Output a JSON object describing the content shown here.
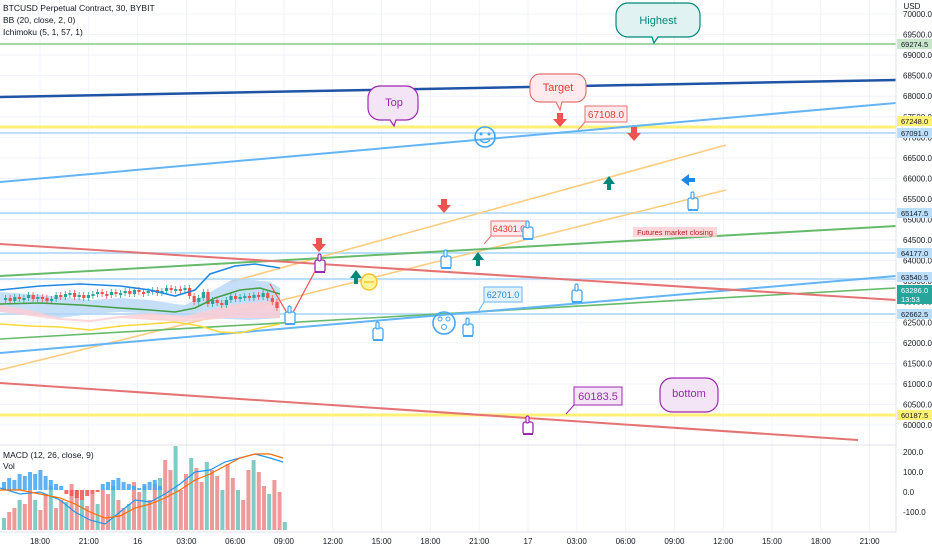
{
  "legends": {
    "symbol": "BTCUSD Perpetual Contract, 30, BYBIT",
    "bb": "BB (20, close, 2, 0)",
    "ichimoku": "Ichimoku (5, 1, 57, 1)",
    "macd": "MACD (12, 26, close, 9)",
    "vol": "Vol"
  },
  "price_axis": {
    "currency": "USD",
    "ticks": [
      "70000.0",
      "69500.0",
      "69000.0",
      "68500.0",
      "68000.0",
      "67500.0",
      "67000.0",
      "66500.0",
      "66000.0",
      "65500.0",
      "65000.0",
      "64500.0",
      "64000.0",
      "63500.0",
      "63000.0",
      "62500.0",
      "62000.0",
      "61500.0",
      "61000.0",
      "60500.0",
      "60000.0"
    ]
  },
  "macd_axis": {
    "ticks": [
      "200.0",
      "100.0",
      "0.0",
      "-100.0"
    ]
  },
  "time_axis": {
    "ticks": [
      "18:00",
      "21:00",
      "16",
      "03:00",
      "06:00",
      "09:00",
      "12:00",
      "15:00",
      "18:00",
      "21:00",
      "17",
      "03:00",
      "06:00",
      "09:00",
      "12:00",
      "15:00",
      "18:00",
      "21:00"
    ]
  },
  "price_tags": [
    {
      "text": "69274.5",
      "bg": "#c8e6c9",
      "fg": "#131722"
    },
    {
      "text": "67248.0",
      "bg": "#fff176",
      "fg": "#131722"
    },
    {
      "text": "67091.0",
      "bg": "#bbdefb",
      "fg": "#131722"
    },
    {
      "text": "65147.5",
      "bg": "#bbdefb",
      "fg": "#131722"
    },
    {
      "text": "64177.0",
      "bg": "#bbdefb",
      "fg": "#131722"
    },
    {
      "text": "63540.5",
      "bg": "#bbdefb",
      "fg": "#131722"
    },
    {
      "text": "63286.0",
      "bg": "#26a69a",
      "fg": "#ffffff"
    },
    {
      "text": "13:53",
      "bg": "#26a69a",
      "fg": "#ffffff"
    },
    {
      "text": "62662.5",
      "bg": "#bbdefb",
      "fg": "#131722"
    },
    {
      "text": "60187.5",
      "bg": "#fff176",
      "fg": "#131722"
    }
  ],
  "callouts": {
    "highest": "Highest",
    "target": "Target",
    "top": "Top",
    "bottom": "bottom",
    "p67108": "67108.0",
    "p64301": "64301.0",
    "p62701": "62701.0",
    "p60183": "60183.5",
    "futures": "Futures market closing"
  },
  "colors": {
    "up": "#26a69a",
    "down": "#ef5350",
    "yellow": "#ffeb3b",
    "orange": "#ffcc80",
    "blue_line": "#64b5f6",
    "dark_blue": "#1e53a6",
    "green_line": "#66bb6a",
    "red_line": "#e57373",
    "purple": "#9c27b0",
    "teal": "#00897b"
  },
  "icons": [
    "thumbs-down-icon",
    "thumbs-up-icon",
    "arrow-down-icon",
    "arrow-up-icon",
    "arrow-left-icon",
    "smiley-icon",
    "dizzy-face-icon",
    "neutral-face-icon"
  ]
}
